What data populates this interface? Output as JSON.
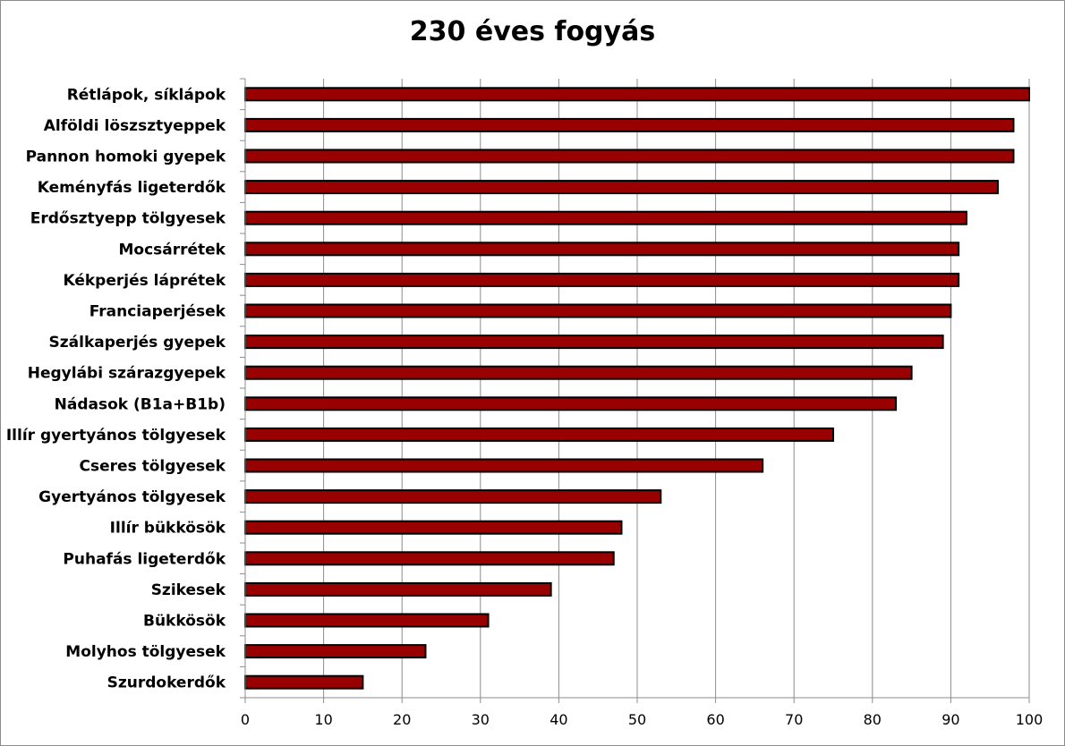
{
  "chart_data": {
    "type": "bar",
    "orientation": "horizontal",
    "title": "230 éves fogyás",
    "xlabel": "",
    "ylabel": "",
    "xlim": [
      0,
      100
    ],
    "x_ticks": [
      0,
      10,
      20,
      30,
      40,
      50,
      60,
      70,
      80,
      90,
      100
    ],
    "grid": "vertical",
    "legend": "none",
    "bar_color": "#990000",
    "bar_edge_color": "#000000",
    "categories": [
      "Rétlápok, síklápok",
      "Alföldi löszsztyeppek",
      "Pannon homoki gyepek",
      "Keményfás ligeterdők",
      "Erdősztyepp tölgyesek",
      "Mocsárrétek",
      "Kékperjés láprétek",
      "Franciaperjések",
      "Szálkaperjés gyepek",
      "Hegylábi szárazgyepek",
      "Nádasok (B1a+B1b)",
      "Illír gyertyános tölgyesek",
      "Cseres tölgyesek ",
      "Gyertyános tölgyesek",
      "Illír bükkösök",
      "Puhafás ligeterdők",
      "Szikesek",
      "Bükkösök",
      "Molyhos tölgyesek",
      "Szurdokerdők"
    ],
    "values": [
      100,
      98,
      98,
      96,
      92,
      91,
      91,
      90,
      89,
      85,
      83,
      75,
      66,
      53,
      48,
      47,
      39,
      31,
      23,
      15
    ]
  }
}
